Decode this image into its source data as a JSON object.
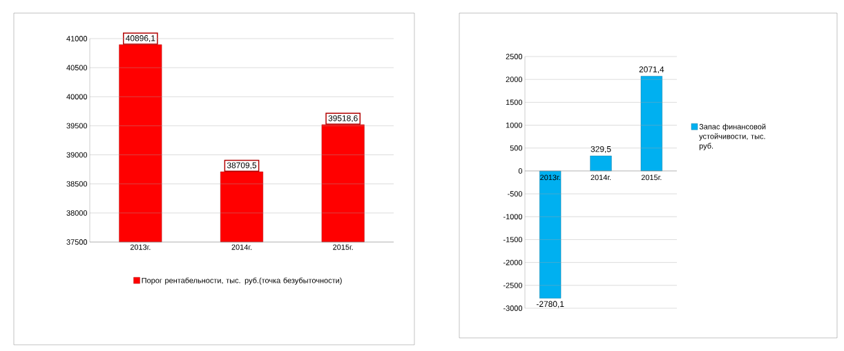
{
  "chart_data": [
    {
      "type": "bar",
      "categories": [
        "2013г.",
        "2014г.",
        "2015г."
      ],
      "series": [
        {
          "name": "Порог рентабельности, тыс. руб.(точка безубыточности)",
          "color": "#ff0000",
          "values": [
            40896.1,
            38709.5,
            39518.6
          ],
          "value_labels": [
            "40896,1",
            "38709,5",
            "39518,6"
          ]
        }
      ],
      "ylim": [
        37500,
        41000
      ],
      "yticks": [
        37500,
        38000,
        38500,
        39000,
        39500,
        40000,
        40500,
        41000
      ],
      "grid": "y",
      "legend": "bottom"
    },
    {
      "type": "bar",
      "categories": [
        "2013г.",
        "2014г.",
        "2015г."
      ],
      "series": [
        {
          "name": "Запас финансовой устойчивости, тыс. руб.",
          "color": "#00b0f0",
          "values": [
            -2780.1,
            329.5,
            2071.4
          ],
          "value_labels": [
            "-2780,1",
            "329,5",
            "2071,4"
          ]
        }
      ],
      "ylim": [
        -3000,
        2500
      ],
      "yticks": [
        -3000,
        -2500,
        -2000,
        -1500,
        -1000,
        -500,
        0,
        500,
        1000,
        1500,
        2000,
        2500
      ],
      "grid": "y",
      "legend": "right"
    }
  ]
}
